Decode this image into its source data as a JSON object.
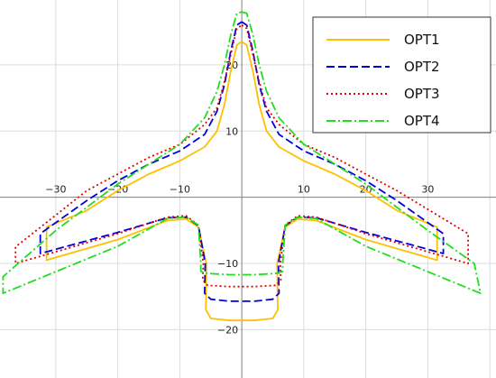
{
  "chart_data": {
    "type": "line",
    "title": "",
    "xlabel": "",
    "ylabel": "",
    "xlim": [
      -39,
      41
    ],
    "ylim": [
      -27.3,
      29.8
    ],
    "grid": true,
    "legend_position": "top-right",
    "x_ticks": [
      -30,
      -20,
      -10,
      10,
      20,
      30
    ],
    "y_ticks": [
      20,
      10,
      -10,
      -20
    ],
    "series": [
      {
        "name": "OPT1",
        "color": "#ffc000",
        "dash": "solid",
        "points": [
          [
            0,
            23.5
          ],
          [
            0.8,
            23
          ],
          [
            1.8,
            19
          ],
          [
            2.8,
            14
          ],
          [
            4,
            10
          ],
          [
            6,
            7.6
          ],
          [
            10,
            5.5
          ],
          [
            15,
            3.5
          ],
          [
            20,
            1
          ],
          [
            25,
            -2
          ],
          [
            31.5,
            -4.5
          ],
          [
            31.5,
            -9.5
          ],
          [
            20,
            -6.4
          ],
          [
            12,
            -3.5
          ],
          [
            9,
            -3.3
          ],
          [
            7,
            -4.5
          ],
          [
            5.7,
            -10
          ],
          [
            5.8,
            -17
          ],
          [
            5,
            -18.3
          ],
          [
            2,
            -18.6
          ],
          [
            -2,
            -18.6
          ],
          [
            -5,
            -18.3
          ],
          [
            -5.8,
            -17
          ],
          [
            -5.7,
            -10
          ],
          [
            -7,
            -4.5
          ],
          [
            -9,
            -3.3
          ],
          [
            -12,
            -3.5
          ],
          [
            -20,
            -6.4
          ],
          [
            -31.5,
            -9.5
          ],
          [
            -31.5,
            -4.5
          ],
          [
            -25,
            -2
          ],
          [
            -20,
            1
          ],
          [
            -15,
            3.5
          ],
          [
            -10,
            5.5
          ],
          [
            -6,
            7.6
          ],
          [
            -4,
            10
          ],
          [
            -2.8,
            14
          ],
          [
            -1.8,
            19
          ],
          [
            -0.8,
            23
          ],
          [
            0,
            23.5
          ]
        ]
      },
      {
        "name": "OPT2",
        "color": "#0000e0",
        "dash": "9,4",
        "points": [
          [
            0,
            26.5
          ],
          [
            0.8,
            26
          ],
          [
            1.8,
            22
          ],
          [
            2.8,
            17
          ],
          [
            4,
            13
          ],
          [
            6,
            9.5
          ],
          [
            10,
            7
          ],
          [
            15,
            5
          ],
          [
            20,
            2.5
          ],
          [
            25,
            -0.5
          ],
          [
            32.5,
            -5.5
          ],
          [
            32.5,
            -8.5
          ],
          [
            20,
            -5.3
          ],
          [
            12,
            -3.1
          ],
          [
            9,
            -3
          ],
          [
            7,
            -4.3
          ],
          [
            5.9,
            -10
          ],
          [
            6,
            -14.5
          ],
          [
            5,
            -15.4
          ],
          [
            2,
            -15.7
          ],
          [
            -2,
            -15.7
          ],
          [
            -5,
            -15.4
          ],
          [
            -6,
            -14.5
          ],
          [
            -5.9,
            -10
          ],
          [
            -7,
            -4.3
          ],
          [
            -9,
            -3
          ],
          [
            -12,
            -3.1
          ],
          [
            -20,
            -5.3
          ],
          [
            -32.5,
            -8.5
          ],
          [
            -32.5,
            -5.5
          ],
          [
            -25,
            -0.5
          ],
          [
            -20,
            2.5
          ],
          [
            -15,
            5
          ],
          [
            -10,
            7
          ],
          [
            -6,
            9.5
          ],
          [
            -4,
            13
          ],
          [
            -2.8,
            17
          ],
          [
            -1.8,
            22
          ],
          [
            -0.8,
            26
          ],
          [
            0,
            26.5
          ]
        ]
      },
      {
        "name": "OPT3",
        "color": "#e00000",
        "dash": "2,3",
        "points": [
          [
            0,
            26
          ],
          [
            0.8,
            25.5
          ],
          [
            1.8,
            21.5
          ],
          [
            2.8,
            17.5
          ],
          [
            4,
            13.5
          ],
          [
            6,
            11
          ],
          [
            10,
            8
          ],
          [
            15,
            6
          ],
          [
            20,
            3.5
          ],
          [
            25,
            1
          ],
          [
            36.5,
            -5.5
          ],
          [
            36.5,
            -10
          ],
          [
            20,
            -5.5
          ],
          [
            12,
            -3
          ],
          [
            9,
            -2.8
          ],
          [
            7,
            -4.2
          ],
          [
            6.2,
            -10
          ],
          [
            6.3,
            -12.5
          ],
          [
            5.5,
            -13.3
          ],
          [
            2,
            -13.5
          ],
          [
            -2,
            -13.5
          ],
          [
            -5.5,
            -13.3
          ],
          [
            -6.3,
            -12.5
          ],
          [
            -6.2,
            -10
          ],
          [
            -7,
            -4.2
          ],
          [
            -9,
            -2.8
          ],
          [
            -12,
            -3
          ],
          [
            -20,
            -5.5
          ],
          [
            -36.5,
            -10
          ],
          [
            -36.5,
            -7.5
          ],
          [
            -25,
            1
          ],
          [
            -20,
            3.5
          ],
          [
            -15,
            6
          ],
          [
            -10,
            8
          ],
          [
            -6,
            11
          ],
          [
            -4,
            13.5
          ],
          [
            -2.8,
            17.5
          ],
          [
            -1.8,
            21.5
          ],
          [
            -0.8,
            25.5
          ],
          [
            0,
            26
          ]
        ]
      },
      {
        "name": "OPT4",
        "color": "#22dd22",
        "dash": "10,3,2,3",
        "points": [
          [
            0,
            28
          ],
          [
            0.8,
            27.8
          ],
          [
            1.8,
            24.5
          ],
          [
            2.8,
            20
          ],
          [
            4,
            16
          ],
          [
            6,
            12
          ],
          [
            10,
            8
          ],
          [
            15,
            5
          ],
          [
            20,
            2
          ],
          [
            30,
            -5
          ],
          [
            37.5,
            -10
          ],
          [
            38.5,
            -14.5
          ],
          [
            20,
            -7.4
          ],
          [
            12,
            -3.2
          ],
          [
            9,
            -3
          ],
          [
            7,
            -4.2
          ],
          [
            6.6,
            -10
          ],
          [
            6.6,
            -11.2
          ],
          [
            5.5,
            -11.5
          ],
          [
            2,
            -11.7
          ],
          [
            -2,
            -11.7
          ],
          [
            -5.5,
            -11.5
          ],
          [
            -6.6,
            -11.2
          ],
          [
            -6.6,
            -10
          ],
          [
            -7,
            -4.2
          ],
          [
            -9,
            -3
          ],
          [
            -12,
            -3.2
          ],
          [
            -20,
            -7.4
          ],
          [
            -38.5,
            -14.5
          ],
          [
            -38.5,
            -12
          ],
          [
            -30,
            -5
          ],
          [
            -20,
            2
          ],
          [
            -15,
            5
          ],
          [
            -10,
            8
          ],
          [
            -6,
            12
          ],
          [
            -4,
            16
          ],
          [
            -2.8,
            20
          ],
          [
            -1.8,
            24.5
          ],
          [
            -0.8,
            27.8
          ],
          [
            0,
            28
          ]
        ]
      }
    ]
  }
}
